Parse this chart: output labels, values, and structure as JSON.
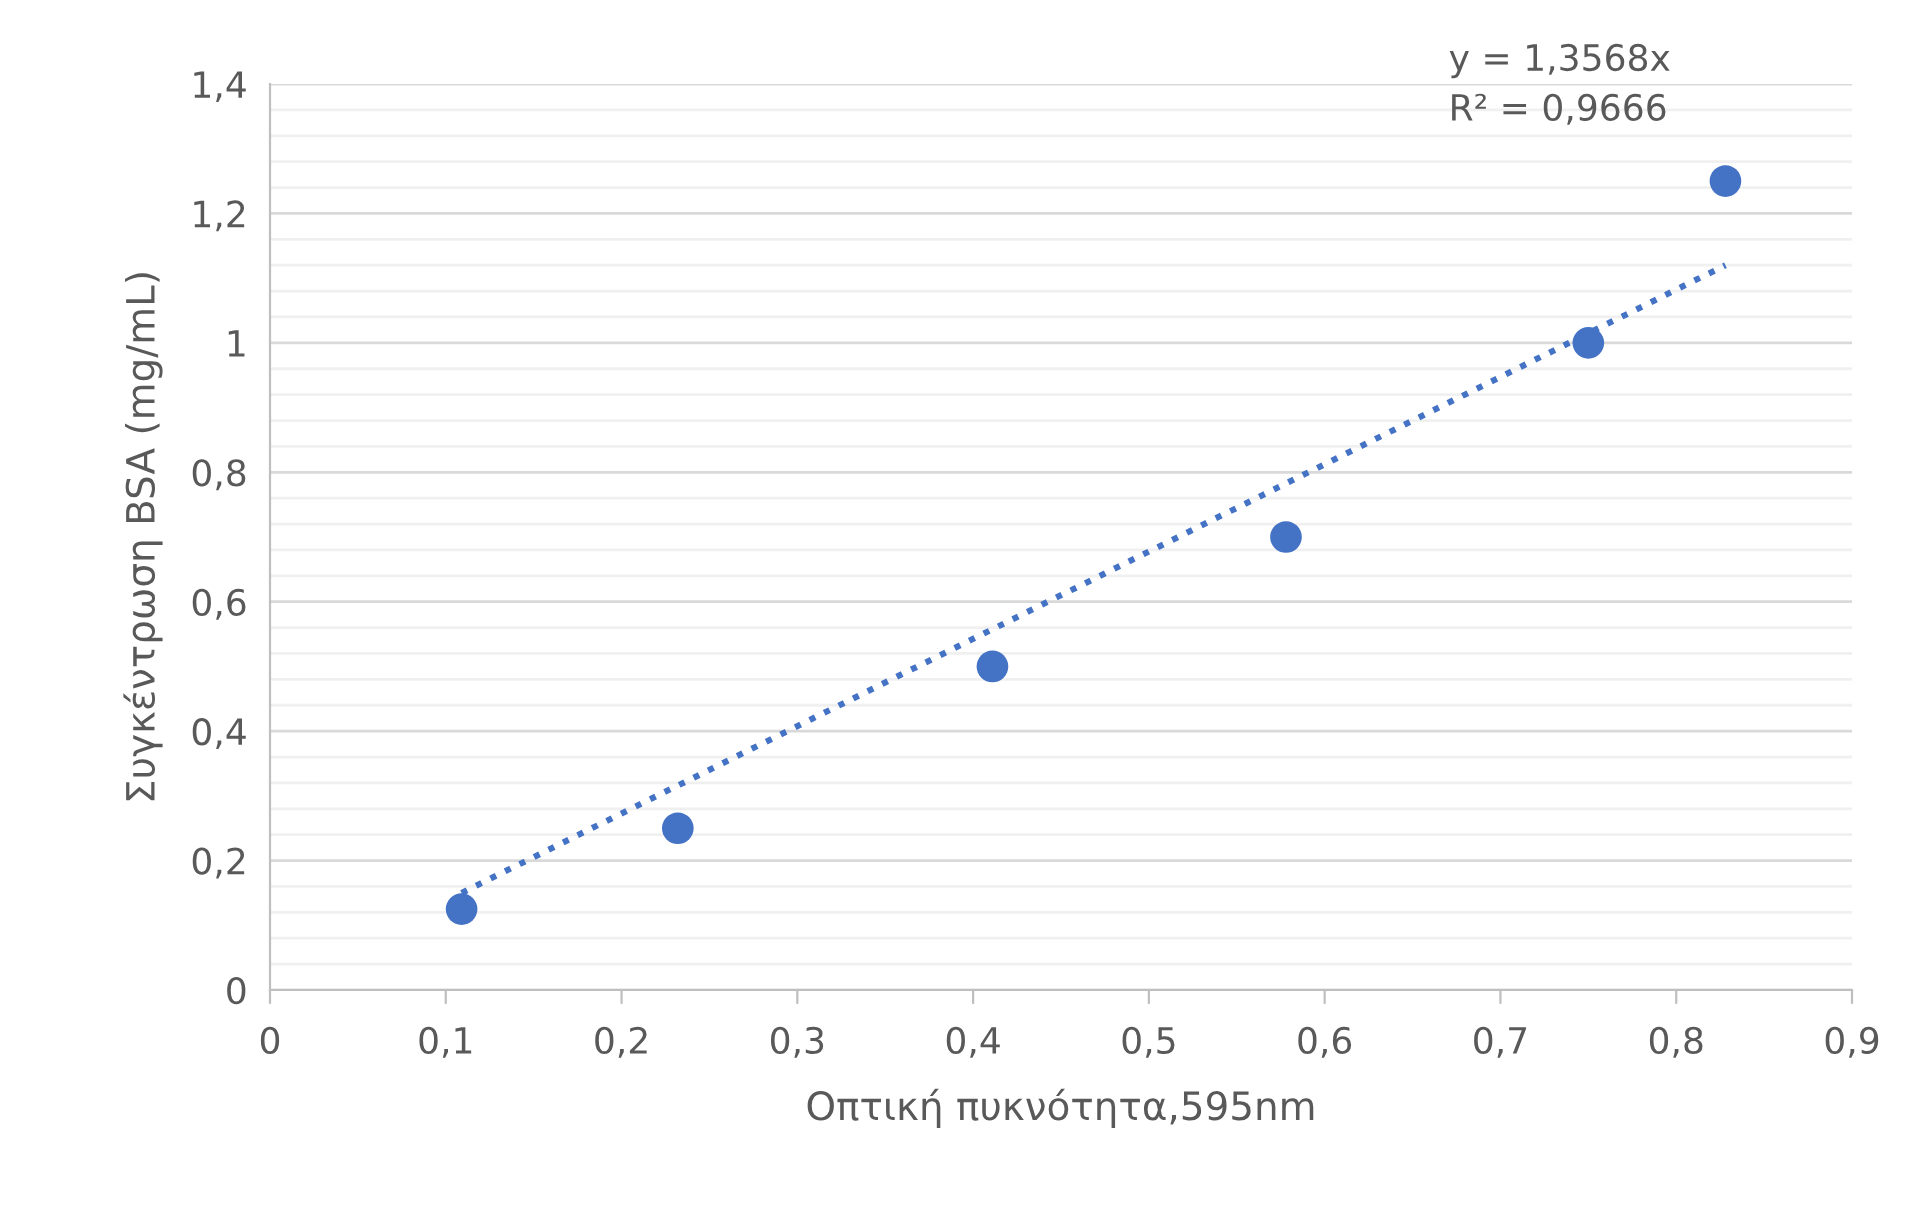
{
  "chart_data": {
    "type": "scatter",
    "xlabel": "Οπτική πυκνότητα,595nm",
    "ylabel": "Συγκέντρωση BSA (mg/mL)",
    "series": [
      {
        "color": "#4472c4",
        "marker": "circle",
        "x": [
          0.109,
          0.232,
          0.411,
          0.578,
          0.75,
          0.828
        ],
        "values": [
          0.125,
          0.25,
          0.5,
          0.7,
          1.0,
          1.25
        ]
      },
      {
        "type": "line",
        "color": "#4472c4",
        "line_style": "dotted",
        "marker": "none",
        "x": [
          0.109,
          0.828
        ],
        "values": [
          0.15,
          1.12
        ]
      }
    ],
    "annotations": [
      "y = 1,3568x",
      "R² = 0,9666"
    ],
    "xlim": [
      0,
      0.9
    ],
    "ylim": [
      0,
      1.4
    ],
    "xticks": [
      0,
      {
        "value": 0.1,
        "label": "0,1"
      },
      {
        "value": 0.2,
        "label": "0,2"
      },
      {
        "value": 0.3,
        "label": "0,3"
      },
      {
        "value": 0.4,
        "label": "0,4"
      },
      {
        "value": 0.5,
        "label": "0,5"
      },
      {
        "value": 0.6,
        "label": "0,6"
      },
      {
        "value": 0.7,
        "label": "0,7"
      },
      {
        "value": 0.8,
        "label": "0,8"
      },
      {
        "value": 0.9,
        "label": "0,9"
      }
    ],
    "yticks": [
      0,
      {
        "value": 0.2,
        "label": "0,2"
      },
      {
        "value": 0.4,
        "label": "0,4"
      },
      {
        "value": 0.6,
        "label": "0,6"
      },
      {
        "value": 0.8,
        "label": "0,8"
      },
      1,
      {
        "value": 1.2,
        "label": "1,2"
      },
      {
        "value": 1.4,
        "label": "1,4"
      }
    ],
    "grid": "y",
    "legend": false
  }
}
